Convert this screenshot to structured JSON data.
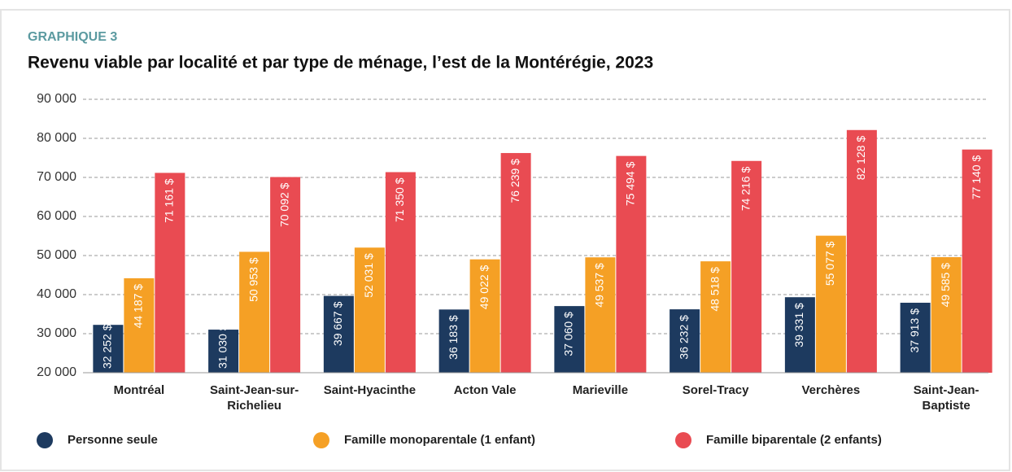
{
  "chart_data": {
    "type": "bar",
    "kicker": "GRAPHIQUE 3",
    "title": "Revenu viable par localité et par type de ménage, l’est de la Montérégie, 2023",
    "categories": [
      "Montréal",
      "Saint-Jean-sur-Richelieu",
      "Saint-Hyacinthe",
      "Acton Vale",
      "Marieville",
      "Sorel-Tracy",
      "Verchères",
      "Saint-Jean-Baptiste"
    ],
    "series": [
      {
        "name": "Personne seule",
        "color": "#1d3a5f",
        "values": [
          32252,
          31030,
          39667,
          36183,
          37060,
          36232,
          39331,
          37913
        ],
        "value_labels": [
          "32 252 $",
          "31 030 $",
          "39 667 $",
          "36 183 $",
          "37 060 $",
          "36 232 $",
          "39 331 $",
          "37 913 $"
        ]
      },
      {
        "name": "Famille monoparentale (1 enfant)",
        "color": "#f5a025",
        "values": [
          44187,
          50953,
          52031,
          49022,
          49537,
          48518,
          55077,
          49585
        ],
        "value_labels": [
          "44 187 $",
          "50 953 $",
          "52 031 $",
          "49 022 $",
          "49 537 $",
          "48 518 $",
          "55 077 $",
          "49 585 $"
        ]
      },
      {
        "name": "Famille biparentale (2 enfants)",
        "color": "#e94b52",
        "values": [
          71161,
          70092,
          71350,
          76239,
          75494,
          74216,
          82128,
          77140
        ],
        "value_labels": [
          "71 161 $",
          "70 092 $",
          "71 350 $",
          "76 239 $",
          "75 494 $",
          "74 216 $",
          "82 128 $",
          "77 140 $"
        ]
      }
    ],
    "ylim": [
      20000,
      90000
    ],
    "yticks": [
      {
        "value": 20000,
        "label": "20 000"
      },
      {
        "value": 30000,
        "label": "30 000"
      },
      {
        "value": 40000,
        "label": "40 000"
      },
      {
        "value": 50000,
        "label": "50 000"
      },
      {
        "value": 60000,
        "label": "60 000"
      },
      {
        "value": 70000,
        "label": "70 000"
      },
      {
        "value": 80000,
        "label": "80 000"
      },
      {
        "value": 90000,
        "label": "90 000"
      }
    ],
    "grid": true
  }
}
